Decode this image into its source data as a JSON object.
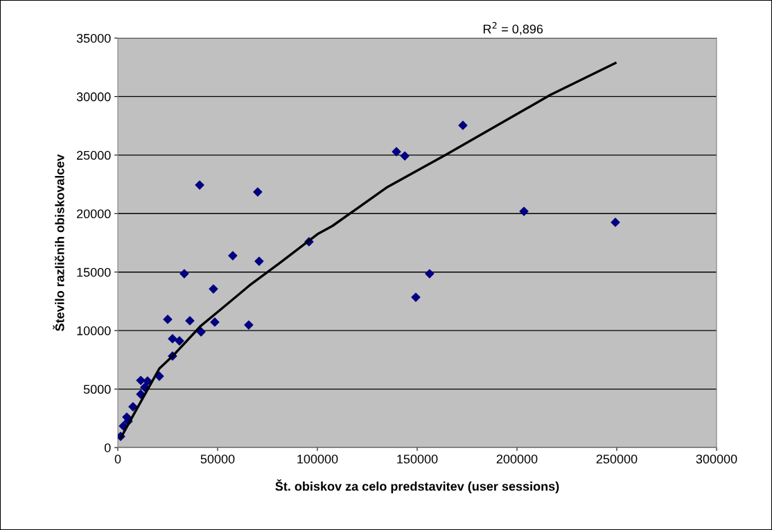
{
  "chart_data": {
    "type": "scatter",
    "xlabel": "Št. obiskov za celo predstavitev (user sessions)",
    "ylabel": "Število različnih obiskovalcev",
    "annotations": [
      "R$^{2}$ = 0,896"
    ],
    "xlim": [
      0,
      300000
    ],
    "xticks": [
      0,
      50000,
      100000,
      150000,
      200000,
      250000,
      300000
    ],
    "ylim": [
      0,
      35000
    ],
    "yticks": [
      0,
      5000,
      10000,
      15000,
      20000,
      25000,
      30000,
      35000
    ],
    "grid": "y",
    "legend": false,
    "series": [
      {
        "color": "#000080",
        "marker": "diamond",
        "x": [
          1400,
          2800,
          4500,
          5200,
          7600,
          11500,
          13500,
          11500,
          14900,
          20800,
          27400,
          27400,
          30900,
          25000,
          36100,
          41700,
          48600,
          65600,
          33300,
          47900,
          41000,
          70100,
          57600,
          70800,
          95800,
          139600,
          143800,
          172900,
          203500,
          249300,
          156200,
          149300
        ],
        "values": [
          950,
          1840,
          2600,
          2250,
          3490,
          4560,
          5150,
          5740,
          5690,
          6100,
          7820,
          9300,
          9120,
          10960,
          10840,
          9890,
          10720,
          10480,
          14860,
          13560,
          22440,
          21850,
          16400,
          15930,
          17590,
          25290,
          24930,
          27540,
          20190,
          19250,
          14860,
          12850
        ]
      },
      {
        "type": "line",
        "color": "#000000",
        "marker": "none",
        "line_style": "solid",
        "x": [
          1400,
          7600,
          20800,
          27800,
          41700,
          53100,
          66000,
          80900,
          100000,
          107600,
          135100,
          164600,
          216700,
          249300
        ],
        "values": [
          800,
          2720,
          6750,
          7880,
          10420,
          12020,
          13860,
          15750,
          18240,
          18950,
          22270,
          25050,
          30140,
          32870
        ]
      }
    ]
  }
}
